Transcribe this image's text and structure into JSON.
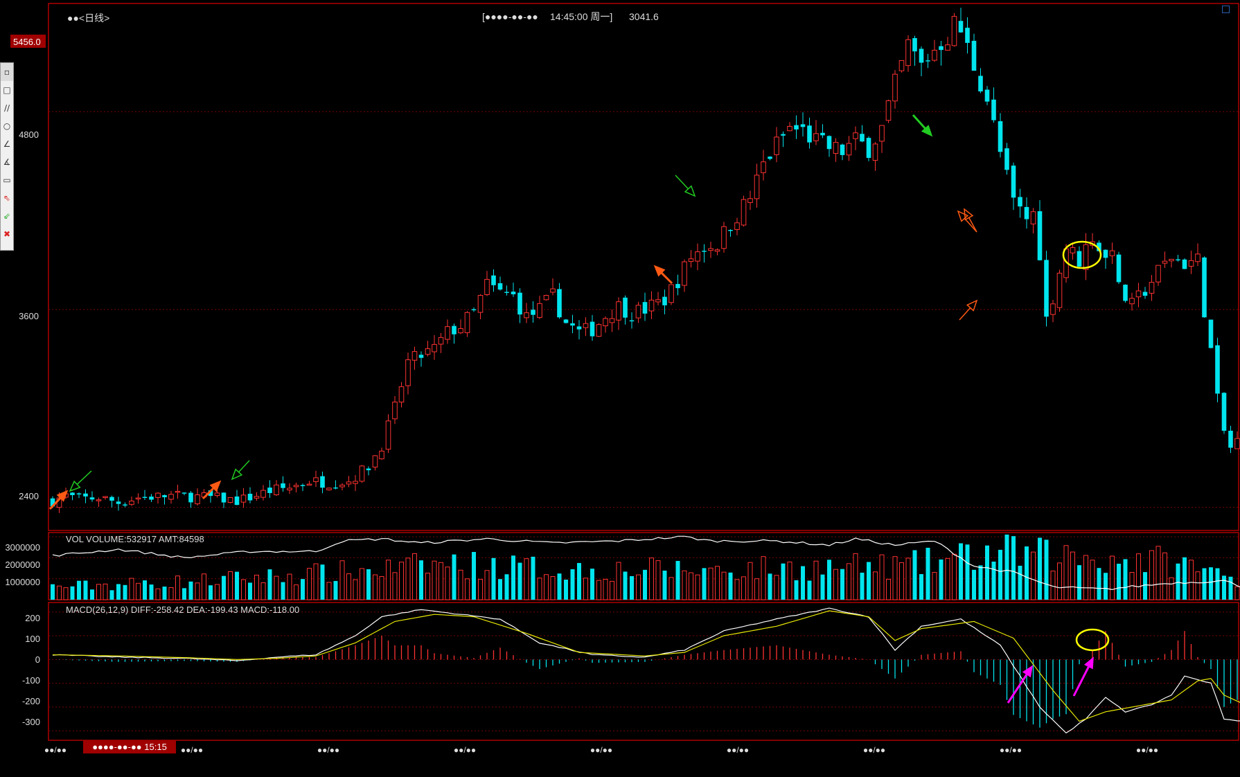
{
  "header": {
    "title": "●●<日线>",
    "cursor_date": "[●●●●-●●-●●",
    "cursor_time": "14:45:00 周一]",
    "cursor_price": "3041.6"
  },
  "price_panel": {
    "high_marker": "5456.0",
    "axis_labels": [
      "4800",
      "3600",
      "2400"
    ]
  },
  "volume_panel": {
    "header": "VOL  VOLUME:532917 AMT:84598",
    "axis_labels": [
      "3000000",
      "2000000",
      "1000000"
    ]
  },
  "macd_panel": {
    "header": "MACD(26,12,9)  DIFF:-258.42 DEA:-199.43 MACD:-118.00",
    "axis_labels": [
      "200",
      "100",
      "0",
      "-100",
      "-200",
      "-300"
    ]
  },
  "x_axis": {
    "labels": [
      "●●/●●",
      "●●/●●",
      "●●/●●",
      "●●/●●",
      "●●/●●",
      "●●/●●",
      "●●/●●",
      "●●/●●",
      "●●/●●"
    ],
    "cursor_label": "●●●●-●●-●● 15:15"
  },
  "toolbar": {
    "tools": [
      "select-tool",
      "rectangle-tool",
      "parallel-lines-tool",
      "ellipse-tool",
      "angle-tool",
      "fibonacci-tool",
      "ruler-tool",
      "sell-arrow-tool",
      "buy-arrow-tool",
      "delete-tool"
    ]
  },
  "colors": {
    "up": "#ff3232",
    "down": "#00e5ee",
    "border": "#b00000",
    "grid": "#7a0000",
    "ma_white": "#ffffff",
    "ma_yellow": "#e8e800",
    "annotation_orange": "#ff5a14",
    "annotation_green": "#22cc22",
    "annotation_magenta": "#ff00ff",
    "annotation_yellow": "#ffff00"
  },
  "chart_data": {
    "type": "candlestick",
    "ylim": [
      2260,
      5456
    ],
    "close_path": [
      [
        0,
        2440
      ],
      [
        2,
        2470
      ],
      [
        4,
        2450
      ],
      [
        7,
        2460
      ],
      [
        10,
        2430
      ],
      [
        13,
        2460
      ],
      [
        18,
        2470
      ],
      [
        24,
        2460
      ],
      [
        28,
        2440
      ],
      [
        30,
        2460
      ],
      [
        33,
        2500
      ],
      [
        36,
        2520
      ],
      [
        39,
        2560
      ],
      [
        42,
        2550
      ],
      [
        45,
        2560
      ],
      [
        48,
        2650
      ],
      [
        50,
        2780
      ],
      [
        52,
        3000
      ],
      [
        54,
        3280
      ],
      [
        56,
        3320
      ],
      [
        58,
        3360
      ],
      [
        60,
        3460
      ],
      [
        62,
        3500
      ],
      [
        64,
        3580
      ],
      [
        66,
        3750
      ],
      [
        68,
        3700
      ],
      [
        70,
        3680
      ],
      [
        72,
        3550
      ],
      [
        74,
        3600
      ],
      [
        76,
        3680
      ],
      [
        78,
        3520
      ],
      [
        80,
        3460
      ],
      [
        82,
        3480
      ],
      [
        84,
        3560
      ],
      [
        86,
        3620
      ],
      [
        88,
        3580
      ],
      [
        90,
        3600
      ],
      [
        93,
        3660
      ],
      [
        95,
        3780
      ],
      [
        97,
        3920
      ],
      [
        99,
        3980
      ],
      [
        101,
        4000
      ],
      [
        103,
        4120
      ],
      [
        106,
        4280
      ],
      [
        108,
        4480
      ],
      [
        110,
        4600
      ],
      [
        112,
        4700
      ],
      [
        114,
        4680
      ],
      [
        116,
        4620
      ],
      [
        118,
        4580
      ],
      [
        120,
        4560
      ],
      [
        122,
        4620
      ],
      [
        124,
        4580
      ],
      [
        126,
        4700
      ],
      [
        128,
        4960
      ],
      [
        130,
        5200
      ],
      [
        132,
        5080
      ],
      [
        134,
        5180
      ],
      [
        136,
        5260
      ],
      [
        137,
        5330
      ],
      [
        138,
        5290
      ],
      [
        140,
        5080
      ],
      [
        142,
        4880
      ],
      [
        144,
        4550
      ],
      [
        146,
        4250
      ],
      [
        148,
        4150
      ],
      [
        149,
        4180
      ],
      [
        150,
        3950
      ],
      [
        151,
        3540
      ],
      [
        152,
        3680
      ],
      [
        154,
        3980
      ],
      [
        156,
        3900
      ],
      [
        158,
        4050
      ],
      [
        160,
        3900
      ],
      [
        161,
        4000
      ],
      [
        162,
        3720
      ],
      [
        164,
        3620
      ],
      [
        166,
        3720
      ],
      [
        168,
        3830
      ],
      [
        170,
        3920
      ],
      [
        172,
        3880
      ],
      [
        174,
        3900
      ],
      [
        175,
        3600
      ],
      [
        176,
        3350
      ],
      [
        177,
        3050
      ],
      [
        178,
        2860
      ],
      [
        179,
        2760
      ],
      [
        180,
        2800
      ],
      [
        181,
        3000
      ],
      [
        182,
        3040
      ]
    ],
    "volume_path": [
      [
        0,
        650000
      ],
      [
        20,
        900000
      ],
      [
        50,
        1500000
      ],
      [
        60,
        1800000
      ],
      [
        80,
        1500000
      ],
      [
        100,
        1500000
      ],
      [
        130,
        1700000
      ],
      [
        144,
        2400000
      ],
      [
        152,
        2200000
      ],
      [
        170,
        1900000
      ],
      [
        182,
        900000
      ]
    ],
    "vol_ma_path": [
      [
        0,
        2100000
      ],
      [
        10,
        2400000
      ],
      [
        20,
        2000000
      ],
      [
        30,
        2300000
      ],
      [
        40,
        2300000
      ],
      [
        44,
        2800000
      ],
      [
        50,
        2900000
      ],
      [
        56,
        2700000
      ],
      [
        66,
        2900000
      ],
      [
        76,
        2700000
      ],
      [
        86,
        2800000
      ],
      [
        96,
        3000000
      ],
      [
        100,
        2800000
      ],
      [
        110,
        2800000
      ],
      [
        118,
        2600000
      ],
      [
        122,
        2900000
      ],
      [
        128,
        2600000
      ],
      [
        134,
        2800000
      ],
      [
        140,
        1600000
      ],
      [
        146,
        1300000
      ],
      [
        152,
        600000
      ],
      [
        160,
        500000
      ],
      [
        170,
        800000
      ],
      [
        178,
        900000
      ],
      [
        182,
        500000
      ]
    ],
    "diff_path": [
      [
        0,
        20
      ],
      [
        10,
        10
      ],
      [
        20,
        5
      ],
      [
        28,
        -5
      ],
      [
        34,
        10
      ],
      [
        40,
        20
      ],
      [
        46,
        100
      ],
      [
        50,
        180
      ],
      [
        56,
        210
      ],
      [
        62,
        190
      ],
      [
        68,
        170
      ],
      [
        74,
        70
      ],
      [
        82,
        20
      ],
      [
        90,
        10
      ],
      [
        96,
        40
      ],
      [
        102,
        120
      ],
      [
        110,
        170
      ],
      [
        118,
        215
      ],
      [
        124,
        180
      ],
      [
        128,
        40
      ],
      [
        132,
        140
      ],
      [
        138,
        170
      ],
      [
        144,
        60
      ],
      [
        150,
        -200
      ],
      [
        154,
        -310
      ],
      [
        157,
        -250
      ],
      [
        160,
        -160
      ],
      [
        163,
        -220
      ],
      [
        167,
        -190
      ],
      [
        170,
        -150
      ],
      [
        172,
        -70
      ],
      [
        176,
        -100
      ],
      [
        178,
        -250
      ],
      [
        180,
        -260
      ]
    ],
    "dea_path": [
      [
        0,
        20
      ],
      [
        10,
        15
      ],
      [
        20,
        8
      ],
      [
        28,
        0
      ],
      [
        34,
        5
      ],
      [
        40,
        15
      ],
      [
        46,
        70
      ],
      [
        52,
        160
      ],
      [
        58,
        190
      ],
      [
        64,
        180
      ],
      [
        72,
        110
      ],
      [
        80,
        30
      ],
      [
        90,
        15
      ],
      [
        96,
        30
      ],
      [
        102,
        100
      ],
      [
        110,
        140
      ],
      [
        118,
        205
      ],
      [
        124,
        180
      ],
      [
        128,
        80
      ],
      [
        132,
        130
      ],
      [
        140,
        160
      ],
      [
        146,
        90
      ],
      [
        152,
        -130
      ],
      [
        156,
        -260
      ],
      [
        160,
        -220
      ],
      [
        164,
        -200
      ],
      [
        170,
        -170
      ],
      [
        174,
        -90
      ],
      [
        176,
        -80
      ],
      [
        178,
        -150
      ],
      [
        182,
        -200
      ]
    ],
    "volume_panel": {
      "ylim": [
        0,
        3200000
      ]
    },
    "macd_panel": {
      "ylim": [
        -340,
        240
      ]
    }
  }
}
